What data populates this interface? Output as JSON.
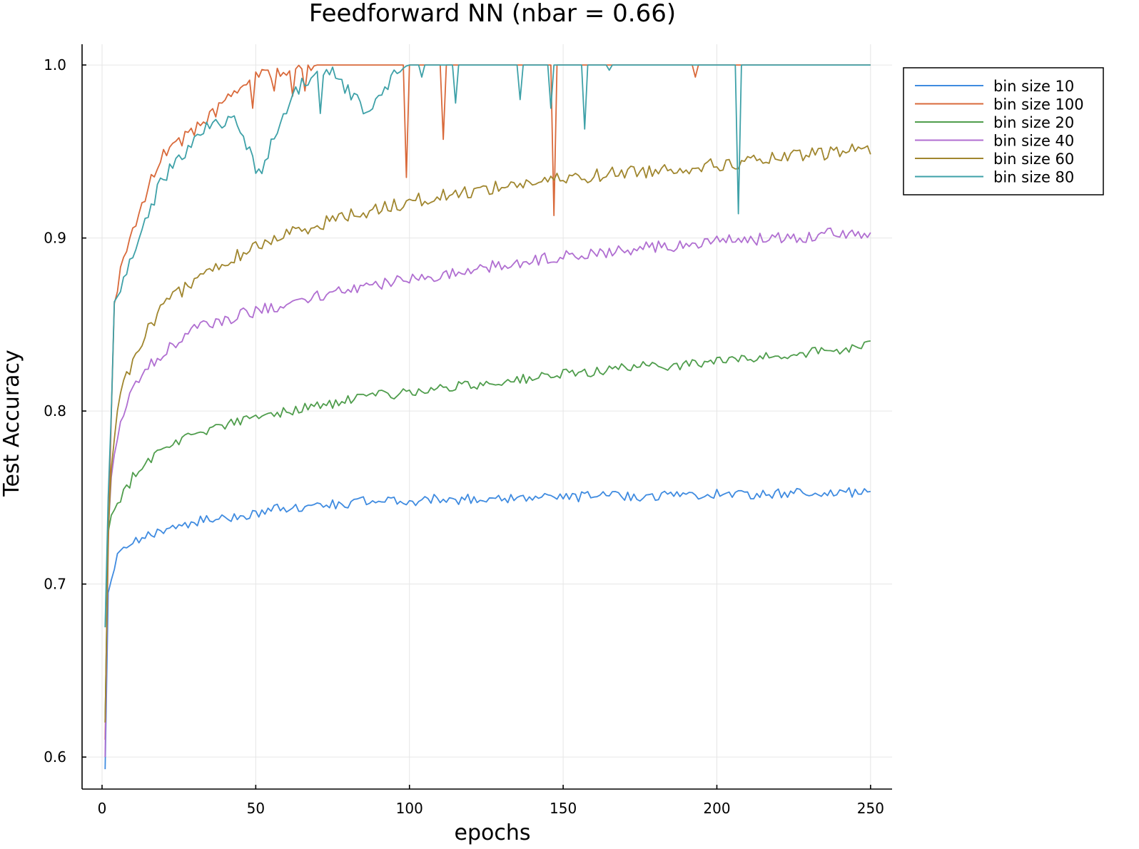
{
  "chart_data": {
    "type": "line",
    "title": "Feedforward NN (nbar = 0.66)",
    "xlabel": "epochs",
    "ylabel": "Test Accuracy",
    "xlim": [
      -6.5,
      257
    ],
    "ylim": [
      0.5815,
      1.012
    ],
    "xticks": [
      0,
      50,
      100,
      150,
      200,
      250
    ],
    "yticks": [
      0.6,
      0.7,
      0.8,
      0.9,
      1.0
    ],
    "xtick_labels": [
      "0",
      "50",
      "100",
      "150",
      "200",
      "250"
    ],
    "ytick_labels": [
      "0.6",
      "0.7",
      "0.8",
      "0.9",
      "1.0"
    ],
    "grid": true,
    "legend_position": "top-right",
    "series": [
      {
        "name": "bin size 10",
        "color": "#3f8be0",
        "points": [
          [
            1,
            0.593
          ],
          [
            2,
            0.695
          ],
          [
            3,
            0.7
          ],
          [
            4,
            0.71
          ],
          [
            5,
            0.715
          ],
          [
            6,
            0.718
          ],
          [
            8,
            0.72
          ],
          [
            10,
            0.723
          ],
          [
            12,
            0.725
          ],
          [
            14,
            0.727
          ],
          [
            16,
            0.729
          ],
          [
            18,
            0.73
          ],
          [
            20,
            0.732
          ],
          [
            25,
            0.734
          ],
          [
            30,
            0.736
          ],
          [
            35,
            0.737
          ],
          [
            40,
            0.738
          ],
          [
            45,
            0.739
          ],
          [
            50,
            0.741
          ],
          [
            55,
            0.743
          ],
          [
            60,
            0.744
          ],
          [
            70,
            0.745
          ],
          [
            80,
            0.747
          ],
          [
            90,
            0.748
          ],
          [
            100,
            0.748
          ],
          [
            110,
            0.749
          ],
          [
            120,
            0.749
          ],
          [
            130,
            0.75
          ],
          [
            140,
            0.75
          ],
          [
            150,
            0.75
          ],
          [
            160,
            0.751
          ],
          [
            170,
            0.751
          ],
          [
            180,
            0.751
          ],
          [
            190,
            0.752
          ],
          [
            200,
            0.752
          ],
          [
            210,
            0.752
          ],
          [
            220,
            0.752
          ],
          [
            230,
            0.753
          ],
          [
            240,
            0.753
          ],
          [
            250,
            0.752
          ]
        ],
        "noise": 0.003
      },
      {
        "name": "bin size 100",
        "color": "#d9693a",
        "points": [
          [
            1,
            0.61
          ],
          [
            2,
            0.72
          ],
          [
            3,
            0.8
          ],
          [
            4,
            0.86
          ],
          [
            5,
            0.87
          ],
          [
            6,
            0.88
          ],
          [
            8,
            0.895
          ],
          [
            10,
            0.905
          ],
          [
            12,
            0.915
          ],
          [
            14,
            0.925
          ],
          [
            16,
            0.935
          ],
          [
            18,
            0.942
          ],
          [
            20,
            0.948
          ],
          [
            25,
            0.955
          ],
          [
            30,
            0.963
          ],
          [
            35,
            0.97
          ],
          [
            40,
            0.978
          ],
          [
            45,
            0.988
          ],
          [
            50,
            0.993
          ],
          [
            55,
            0.996
          ],
          [
            60,
            0.998
          ],
          [
            65,
            0.999
          ],
          [
            70,
            1.0
          ],
          [
            100,
            1.0
          ],
          [
            150,
            1.0
          ],
          [
            200,
            1.0
          ],
          [
            250,
            1.0
          ]
        ],
        "noise": 0.004,
        "settle": 70,
        "dips": [
          [
            49,
            0.975
          ],
          [
            56,
            0.985
          ],
          [
            62,
            0.982
          ],
          [
            66,
            0.985
          ],
          [
            99,
            0.935
          ],
          [
            111,
            0.957
          ],
          [
            147,
            0.913
          ],
          [
            193,
            0.993
          ]
        ]
      },
      {
        "name": "bin size 20",
        "color": "#4f9d4c",
        "points": [
          [
            1,
            0.62
          ],
          [
            2,
            0.73
          ],
          [
            3,
            0.74
          ],
          [
            5,
            0.748
          ],
          [
            8,
            0.755
          ],
          [
            10,
            0.762
          ],
          [
            15,
            0.772
          ],
          [
            20,
            0.778
          ],
          [
            25,
            0.783
          ],
          [
            30,
            0.787
          ],
          [
            40,
            0.792
          ],
          [
            50,
            0.796
          ],
          [
            60,
            0.8
          ],
          [
            70,
            0.803
          ],
          [
            80,
            0.806
          ],
          [
            90,
            0.809
          ],
          [
            100,
            0.811
          ],
          [
            110,
            0.813
          ],
          [
            120,
            0.815
          ],
          [
            130,
            0.817
          ],
          [
            140,
            0.819
          ],
          [
            150,
            0.821
          ],
          [
            160,
            0.823
          ],
          [
            170,
            0.825
          ],
          [
            180,
            0.826
          ],
          [
            190,
            0.827
          ],
          [
            200,
            0.829
          ],
          [
            210,
            0.83
          ],
          [
            220,
            0.832
          ],
          [
            230,
            0.834
          ],
          [
            240,
            0.835
          ],
          [
            250,
            0.838
          ]
        ],
        "noise": 0.003
      },
      {
        "name": "bin size 40",
        "color": "#b06ed1",
        "points": [
          [
            1,
            0.6
          ],
          [
            2,
            0.73
          ],
          [
            3,
            0.76
          ],
          [
            5,
            0.785
          ],
          [
            7,
            0.8
          ],
          [
            10,
            0.813
          ],
          [
            15,
            0.825
          ],
          [
            20,
            0.834
          ],
          [
            25,
            0.841
          ],
          [
            30,
            0.847
          ],
          [
            40,
            0.853
          ],
          [
            50,
            0.858
          ],
          [
            60,
            0.862
          ],
          [
            70,
            0.866
          ],
          [
            80,
            0.87
          ],
          [
            90,
            0.873
          ],
          [
            100,
            0.876
          ],
          [
            110,
            0.879
          ],
          [
            120,
            0.882
          ],
          [
            130,
            0.884
          ],
          [
            140,
            0.887
          ],
          [
            150,
            0.889
          ],
          [
            160,
            0.891
          ],
          [
            170,
            0.893
          ],
          [
            180,
            0.895
          ],
          [
            190,
            0.896
          ],
          [
            200,
            0.898
          ],
          [
            210,
            0.899
          ],
          [
            220,
            0.9
          ],
          [
            230,
            0.901
          ],
          [
            240,
            0.903
          ],
          [
            250,
            0.902
          ]
        ],
        "noise": 0.0035
      },
      {
        "name": "bin size 60",
        "color": "#a0862e",
        "points": [
          [
            1,
            0.62
          ],
          [
            2,
            0.73
          ],
          [
            3,
            0.77
          ],
          [
            5,
            0.8
          ],
          [
            7,
            0.815
          ],
          [
            10,
            0.83
          ],
          [
            15,
            0.848
          ],
          [
            20,
            0.86
          ],
          [
            25,
            0.868
          ],
          [
            30,
            0.876
          ],
          [
            40,
            0.886
          ],
          [
            50,
            0.895
          ],
          [
            60,
            0.902
          ],
          [
            70,
            0.908
          ],
          [
            80,
            0.913
          ],
          [
            90,
            0.917
          ],
          [
            100,
            0.921
          ],
          [
            110,
            0.924
          ],
          [
            120,
            0.927
          ],
          [
            130,
            0.93
          ],
          [
            140,
            0.932
          ],
          [
            150,
            0.934
          ],
          [
            160,
            0.936
          ],
          [
            170,
            0.938
          ],
          [
            180,
            0.939
          ],
          [
            190,
            0.941
          ],
          [
            200,
            0.942
          ],
          [
            210,
            0.944
          ],
          [
            220,
            0.946
          ],
          [
            230,
            0.948
          ],
          [
            240,
            0.95
          ],
          [
            250,
            0.952
          ]
        ],
        "noise": 0.004
      },
      {
        "name": "bin size 80",
        "color": "#3ea1a8",
        "points": [
          [
            1,
            0.675
          ],
          [
            2,
            0.75
          ],
          [
            3,
            0.8
          ],
          [
            4,
            0.86
          ],
          [
            5,
            0.865
          ],
          [
            7,
            0.878
          ],
          [
            10,
            0.89
          ],
          [
            15,
            0.915
          ],
          [
            20,
            0.935
          ],
          [
            25,
            0.945
          ],
          [
            30,
            0.955
          ],
          [
            35,
            0.965
          ],
          [
            40,
            0.968
          ],
          [
            43,
            0.967
          ],
          [
            47,
            0.955
          ],
          [
            50,
            0.94
          ],
          [
            52,
            0.94
          ],
          [
            55,
            0.955
          ],
          [
            60,
            0.975
          ],
          [
            65,
            0.99
          ],
          [
            70,
            0.993
          ],
          [
            75,
            0.995
          ],
          [
            80,
            0.985
          ],
          [
            85,
            0.975
          ],
          [
            90,
            0.98
          ],
          [
            95,
            0.995
          ],
          [
            100,
            1.0
          ],
          [
            150,
            1.0
          ],
          [
            200,
            1.0
          ],
          [
            250,
            1.0
          ]
        ],
        "noise": 0.004,
        "settle": 100,
        "dips": [
          [
            71,
            0.972
          ],
          [
            104,
            0.993
          ],
          [
            115,
            0.978
          ],
          [
            136,
            0.98
          ],
          [
            146,
            0.975
          ],
          [
            157,
            0.963
          ],
          [
            165,
            0.997
          ],
          [
            207,
            0.914
          ]
        ]
      }
    ]
  }
}
